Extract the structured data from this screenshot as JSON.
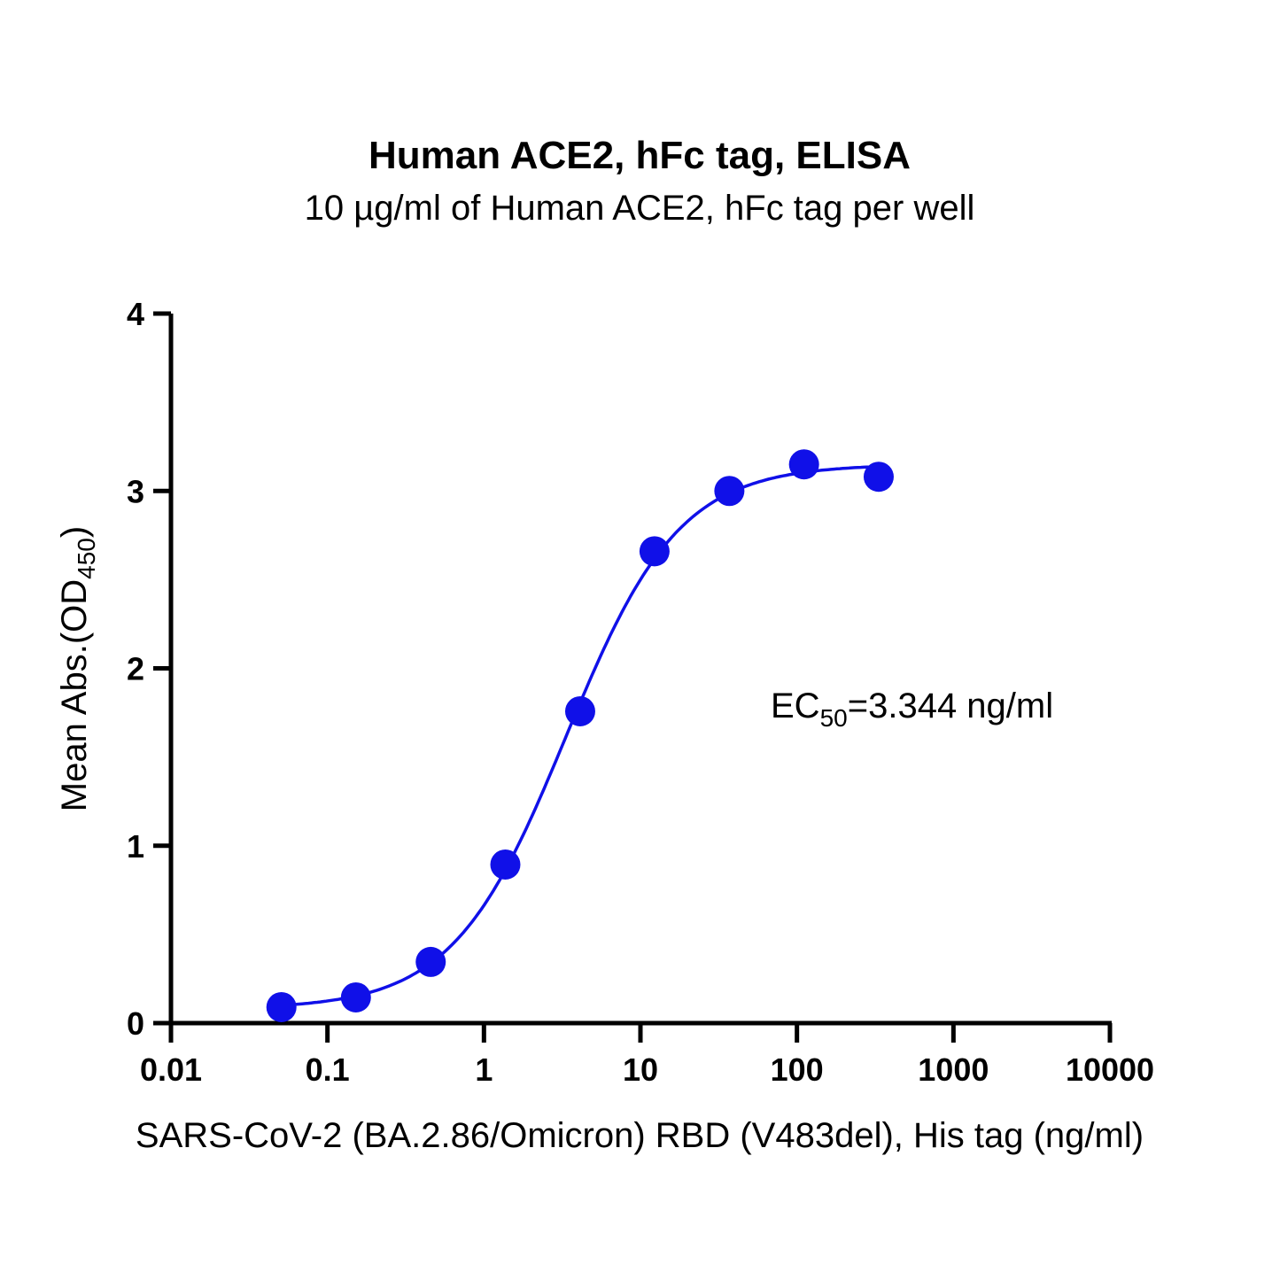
{
  "chart_data": {
    "type": "scatter",
    "title": "Human ACE2, hFc tag, ELISA",
    "subtitle": "10 µg/ml of Human ACE2, hFc tag per well",
    "xlabel": "SARS-CoV-2 (BA.2.86/Omicron) RBD (V483del), His tag (ng/ml)",
    "ylabel_main": "Mean Abs.(OD",
    "ylabel_sub": "450",
    "ylabel_end": ")",
    "x_scale": "log",
    "xlim": [
      0.01,
      10000
    ],
    "ylim": [
      0,
      4
    ],
    "x_ticks": [
      0.01,
      0.1,
      1,
      10,
      100,
      1000,
      10000
    ],
    "x_tick_labels": [
      "0.01",
      "0.1",
      "1",
      "10",
      "100",
      "1000",
      "10000"
    ],
    "y_ticks": [
      0,
      1,
      2,
      3,
      4
    ],
    "y_tick_labels": [
      "0",
      "1",
      "2",
      "3",
      "4"
    ],
    "grid": false,
    "color": "#1010e8",
    "x": [
      0.0508,
      0.152,
      0.457,
      1.37,
      4.12,
      12.3,
      37.0,
      111,
      333
    ],
    "y": [
      0.09,
      0.145,
      0.345,
      0.894,
      1.758,
      2.66,
      3.0,
      3.15,
      3.08
    ],
    "fit": {
      "model": "4PL",
      "bottom": 0.08,
      "top": 3.15,
      "ec50": 3.344,
      "hill": 1.2
    },
    "annotation": {
      "prefix": "EC",
      "sub": "50",
      "text": "=3.344 ng/ml"
    }
  }
}
